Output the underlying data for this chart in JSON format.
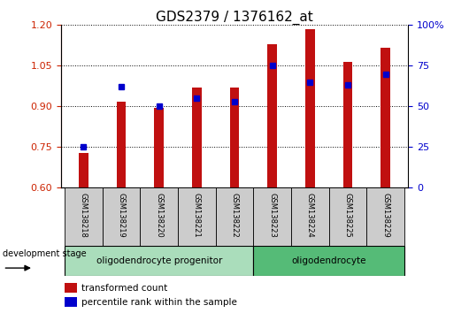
{
  "title": "GDS2379 / 1376162_at",
  "samples": [
    "GSM138218",
    "GSM138219",
    "GSM138220",
    "GSM138221",
    "GSM138222",
    "GSM138223",
    "GSM138224",
    "GSM138225",
    "GSM138229"
  ],
  "transformed_count": [
    0.728,
    0.918,
    0.895,
    0.97,
    0.968,
    1.13,
    1.185,
    1.065,
    1.115
  ],
  "percentile_rank": [
    25,
    62,
    50,
    55,
    53,
    75,
    65,
    63,
    70
  ],
  "ylim_left": [
    0.6,
    1.2
  ],
  "ylim_right": [
    0,
    100
  ],
  "yticks_left": [
    0.6,
    0.75,
    0.9,
    1.05,
    1.2
  ],
  "yticks_right": [
    0,
    25,
    50,
    75,
    100
  ],
  "bar_color": "#C01010",
  "dot_color": "#0000CC",
  "bar_width": 0.25,
  "baseline": 0.6,
  "group1_label": "oligodendrocyte progenitor",
  "group2_label": "oligodendrocyte",
  "group1_count": 5,
  "development_stage_label": "development stage",
  "legend_bar_label": "transformed count",
  "legend_dot_label": "percentile rank within the sample",
  "title_fontsize": 11,
  "tick_fontsize": 8,
  "label_color_left": "#CC2200",
  "label_color_right": "#0000CC",
  "group_bg_color1": "#AADDBB",
  "group_bg_color2": "#55BB77",
  "sample_box_color": "#CCCCCC",
  "dot_size": 18
}
